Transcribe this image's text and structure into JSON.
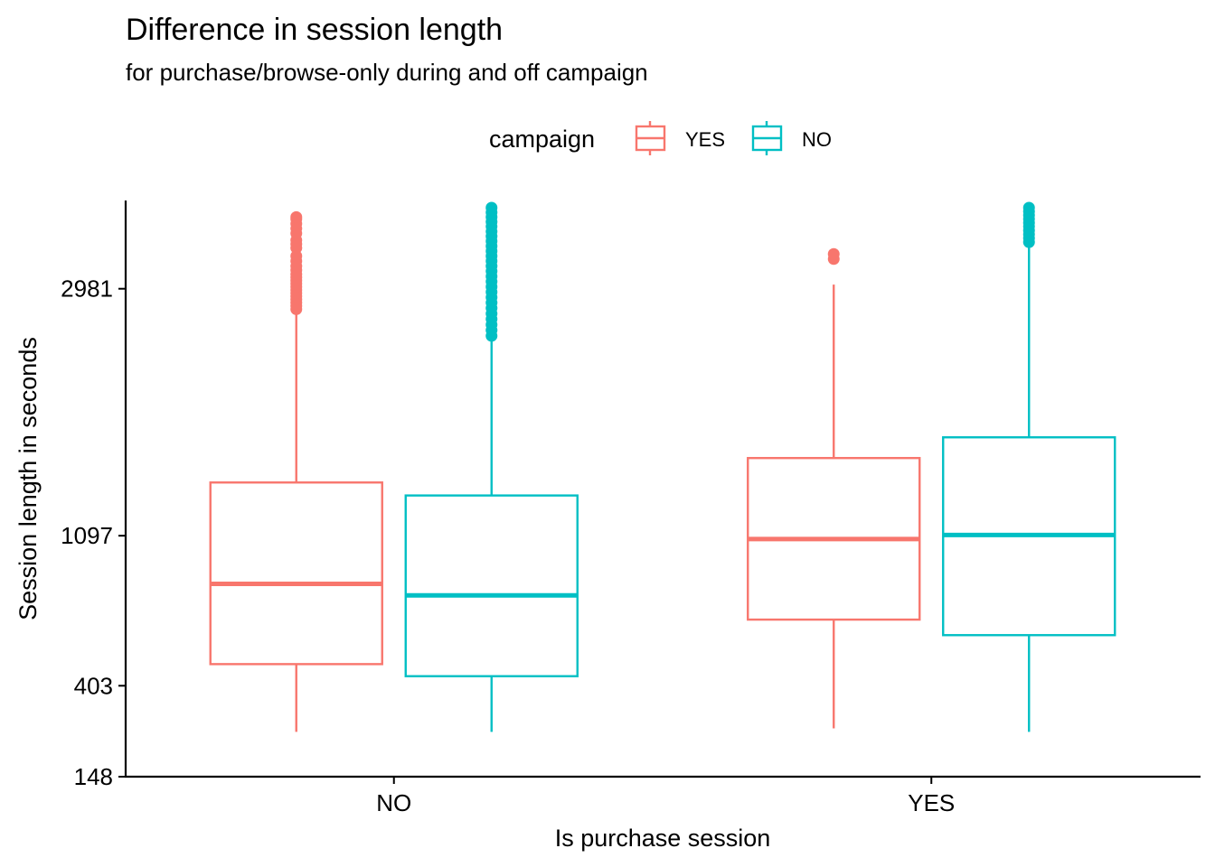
{
  "chart_data": {
    "type": "boxplot",
    "title": "Difference in session length",
    "subtitle": "for purchase/browse-only during and off campaign",
    "xlabel": "Is purchase session",
    "ylabel": "Session length in seconds",
    "categories": [
      "NO",
      "YES"
    ],
    "y_ticks": [
      148,
      403,
      1097,
      2981
    ],
    "ylim": [
      148,
      3800
    ],
    "y_scale": "sqrt",
    "grid": false,
    "legend": {
      "title": "campaign",
      "position": "top",
      "entries": [
        {
          "label": "YES",
          "color": "#F8766D"
        },
        {
          "label": "NO",
          "color": "#00BFC4"
        }
      ]
    },
    "series": [
      {
        "name": "YES",
        "color": "#F8766D",
        "boxes": [
          {
            "category": "NO",
            "whisker_low": 258,
            "q1": 482,
            "median": 837,
            "q3": 1425,
            "whisker_high": 2765,
            "outliers": [
              2790,
              2820,
              2850,
              2880,
              2910,
              2940,
              2970,
              3000,
              3030,
              3060,
              3090,
              3120,
              3160,
              3200,
              3250,
              3300,
              3380,
              3420,
              3460,
              3530,
              3580,
              3630,
              3680,
              3700
            ]
          },
          {
            "category": "YES",
            "whisker_low": 268,
            "q1": 667,
            "median": 1078,
            "q3": 1590,
            "whisker_high": 3020,
            "outliers": [
              3270,
              3320
            ]
          }
        ]
      },
      {
        "name": "NO",
        "color": "#00BFC4",
        "boxes": [
          {
            "category": "NO",
            "whisker_low": 258,
            "q1": 437,
            "median": 780,
            "q3": 1341,
            "whisker_high": 2520,
            "outliers": [
              2550,
              2600,
              2650,
              2700,
              2750,
              2800,
              2850,
              2900,
              2950,
              3000,
              3050,
              3100,
              3150,
              3200,
              3250,
              3300,
              3350,
              3400,
              3450,
              3500,
              3550,
              3600,
              3650,
              3700,
              3750,
              3800
            ]
          },
          {
            "category": "YES",
            "whisker_low": 258,
            "q1": 599,
            "median": 1101,
            "q3": 1737,
            "whisker_high": 3420,
            "outliers": [
              3440,
              3480,
              3520,
              3560,
              3600,
              3640,
              3680,
              3720,
              3760,
              3800
            ]
          }
        ]
      }
    ]
  }
}
